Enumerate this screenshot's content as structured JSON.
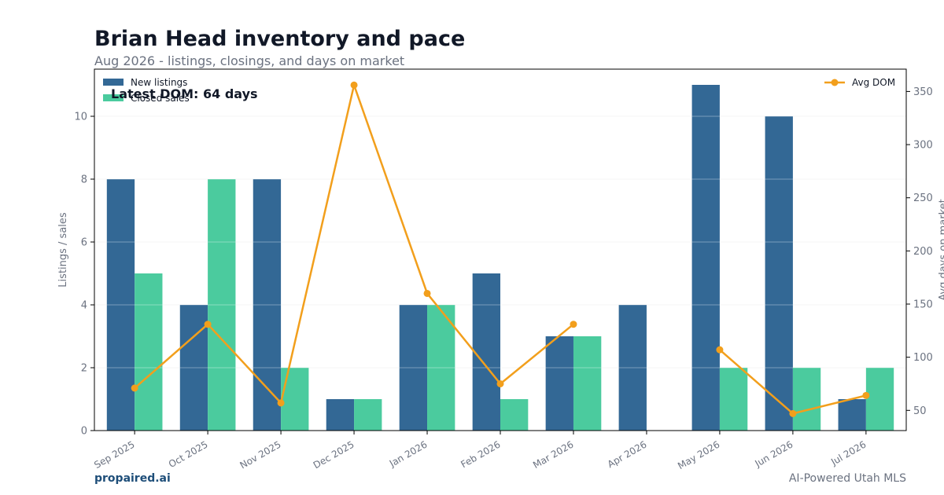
{
  "header": {
    "title": "Brian Head inventory and pace",
    "subtitle": "Aug 2026 - listings, closings, and days on market"
  },
  "footer": {
    "brand": "propaired.ai",
    "tagline": "AI-Powered Utah MLS"
  },
  "annotation": "Latest DOM: 64 days",
  "colors": {
    "new_listings": "#336895",
    "closed_sales": "#4bcb9e",
    "avg_dom": "#f29f1c",
    "axis_text": "#6b7280",
    "grid": "#eef0f2"
  },
  "chart_data": {
    "type": "bar",
    "categories": [
      "Sep 2025",
      "Oct 2025",
      "Nov 2025",
      "Dec 2025",
      "Jan 2026",
      "Feb 2026",
      "Mar 2026",
      "Apr 2026",
      "May 2026",
      "Jun 2026",
      "Jul 2026"
    ],
    "series": [
      {
        "name": "New listings",
        "type": "bar",
        "axis": "left",
        "values": [
          8,
          4,
          8,
          1,
          4,
          5,
          3,
          4,
          11,
          10,
          1
        ]
      },
      {
        "name": "Closed sales",
        "type": "bar",
        "axis": "left",
        "values": [
          5,
          8,
          2,
          1,
          4,
          1,
          3,
          0,
          2,
          2,
          2
        ]
      },
      {
        "name": "Avg DOM",
        "type": "line",
        "axis": "right",
        "values": [
          71,
          131,
          57,
          356,
          160,
          75,
          131,
          null,
          107,
          47,
          64
        ]
      }
    ],
    "ylabel": "Listings / sales",
    "y2label": "Avg days on market",
    "ylim": [
      0,
      11.5
    ],
    "y2lim": [
      31,
      371
    ],
    "yticks": [
      0,
      2,
      4,
      6,
      8,
      10
    ],
    "y2ticks": [
      50,
      100,
      150,
      200,
      250,
      300,
      350
    ],
    "grid": true,
    "legend_left": "top-left",
    "legend_right": "top-right"
  }
}
